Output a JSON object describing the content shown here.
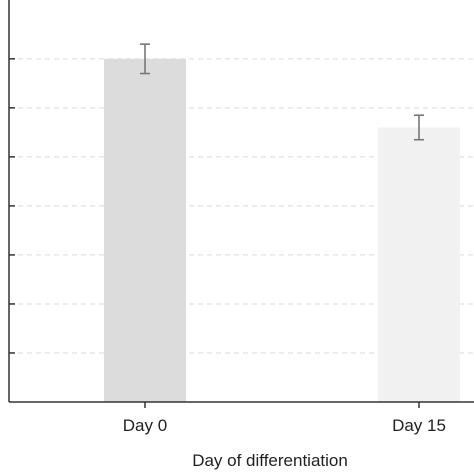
{
  "chart_data": {
    "type": "bar",
    "categories": [
      "Day 0",
      "Day 15"
    ],
    "values": [
      7.0,
      5.6
    ],
    "errors": [
      0.3,
      0.25
    ],
    "xlabel": "Day of differentiation",
    "ylabel": "",
    "ylim": [
      0,
      8.2
    ],
    "y_gridlines": [
      1,
      2,
      3,
      4,
      5,
      6,
      7
    ],
    "grid": "horizontal dashed",
    "legend": "none",
    "bar_colors": [
      "#dcdcdd",
      "#f1f1f1"
    ],
    "error_bar_color": "#777777",
    "axis_color": "#333333",
    "grid_color": "#d9d9d9"
  }
}
